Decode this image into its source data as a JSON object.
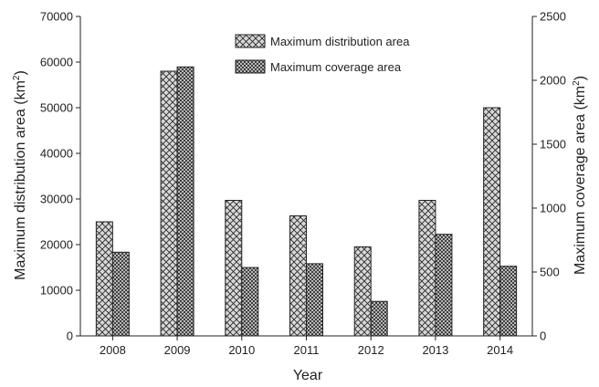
{
  "chart_data": {
    "type": "bar",
    "categories": [
      "2008",
      "2009",
      "2010",
      "2011",
      "2012",
      "2013",
      "2014"
    ],
    "series": [
      {
        "name": "Maximum distribution area",
        "axis": "left",
        "values": [
          25000,
          58000,
          29700,
          26300,
          19500,
          29700,
          50000
        ]
      },
      {
        "name": "Maximum coverage area",
        "axis": "right",
        "values": [
          655,
          2105,
          535,
          565,
          270,
          795,
          545
        ]
      }
    ],
    "xlabel": "Year",
    "ylabel": {
      "text": "Maximum distribution area (km",
      "sup": "2",
      "end": ")"
    },
    "y2label": {
      "text": "Maximum coverage area (km",
      "sup": "2",
      "end": ")"
    },
    "ylim": [
      0,
      70000
    ],
    "y2lim": [
      0,
      2500
    ],
    "yticks": [
      "0",
      "10000",
      "20000",
      "30000",
      "40000",
      "50000",
      "60000",
      "70000"
    ],
    "y2ticks": [
      "0",
      "500",
      "1000",
      "1500",
      "2000",
      "2500"
    ],
    "legend_position": "top-center",
    "grid": false,
    "colors": {
      "bar_fill": "#d8d8d8",
      "hatch": "#222222",
      "axis": "#222222"
    }
  }
}
